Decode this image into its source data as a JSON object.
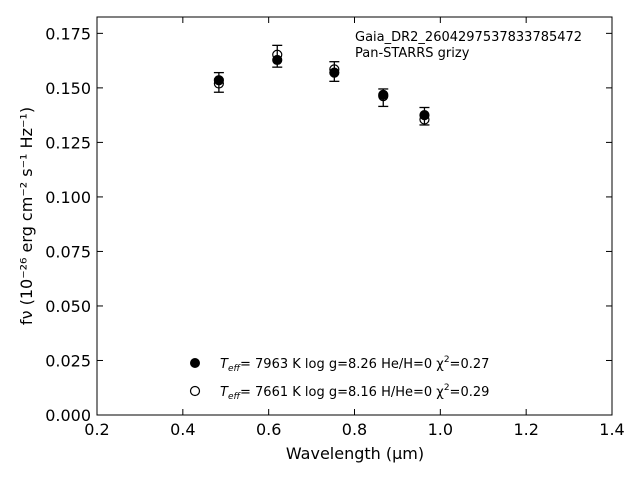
{
  "chart_data": {
    "type": "scatter",
    "xlabel": "Wavelength (μm)",
    "ylabel": "fν (10⁻²⁶ erg cm⁻² s⁻¹ Hz⁻¹)",
    "xlim": [
      0.2,
      1.4
    ],
    "ylim": [
      0.0,
      0.1825
    ],
    "xticks": [
      "0.2",
      "0.4",
      "0.6",
      "0.8",
      "1.0",
      "1.2",
      "1.4"
    ],
    "yticks": [
      "0.000",
      "0.025",
      "0.050",
      "0.075",
      "0.100",
      "0.125",
      "0.150",
      "0.175"
    ],
    "annotation_lines": [
      "Gaia_DR2_2604297537833785472",
      "Pan-STARRS grizy"
    ],
    "observed": {
      "x": [
        0.484,
        0.62,
        0.753,
        0.867,
        0.963
      ],
      "y": [
        0.1525,
        0.1645,
        0.1575,
        0.1455,
        0.137
      ],
      "yerr": [
        0.0045,
        0.005,
        0.0045,
        0.004,
        0.004
      ]
    },
    "series": [
      {
        "marker": "filled",
        "label": "Teff=  7963 K  log g=8.26  He/H=0  χ²=0.27",
        "x": [
          0.484,
          0.62,
          0.753,
          0.867,
          0.963
        ],
        "y": [
          0.1535,
          0.1628,
          0.157,
          0.1468,
          0.1375
        ]
      },
      {
        "marker": "open",
        "label": "Teff=  7661 K  log g=8.16  H/He=0  χ²=0.29",
        "x": [
          0.484,
          0.62,
          0.753,
          0.867,
          0.963
        ],
        "y": [
          0.152,
          0.1652,
          0.1585,
          0.1462,
          0.1355
        ]
      }
    ],
    "legend": {
      "placement": "bottom-center",
      "entries": [
        {
          "teff_symbol": "T",
          "teff_sub": "eff",
          "rest": "=  7963 K  log g=8.26  He/H=0  χ",
          "sup": "2",
          "tail": "=0.27"
        },
        {
          "teff_symbol": "T",
          "teff_sub": "eff",
          "rest": "=  7661 K  log g=8.16  H/He=0  χ",
          "sup": "2",
          "tail": "=0.29"
        }
      ]
    },
    "grid": false
  }
}
